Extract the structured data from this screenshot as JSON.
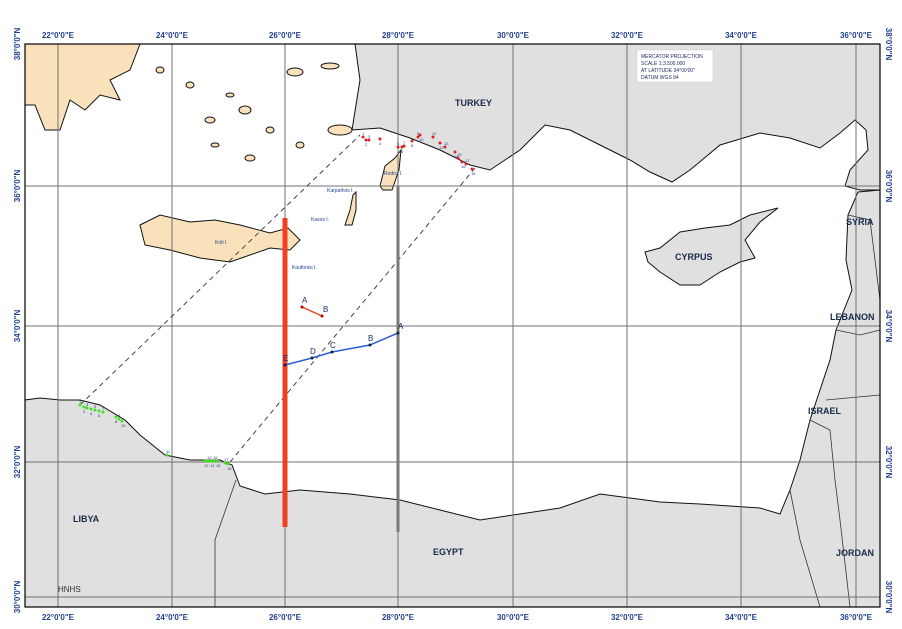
{
  "map": {
    "colors": {
      "land_foreign": "#e0e0e0",
      "land_greece": "#f9e2bb",
      "sea": "#ffffff",
      "grid": "#707070",
      "red_line": "#f04020",
      "grey_line": "#7a7a7a",
      "blue_line": "#2a5fd8",
      "coast_points_turkey": "#e02020",
      "coast_points_libya": "#40e020"
    },
    "legend": [
      "MERCATOR PROJECTION",
      "SCALE 1:3.500.000",
      "AT LATITUDE 34°00'00\"",
      "DATUM WGS 84"
    ],
    "lon_labels": [
      "22°0'0\"E",
      "24°0'0\"E",
      "26°0'0\"E",
      "28°0'0\"E",
      "30°0'0\"E",
      "32°0'0\"E",
      "34°0'0\"E",
      "36°0'0\"E"
    ],
    "lat_labels": [
      "38°0'0\"N",
      "36°0'0\"N",
      "34°0'0\"N",
      "32°0'0\"N",
      "30°0'0\"N"
    ],
    "countries": {
      "turkey": "TURKEY",
      "cyprus": "CYRPUS",
      "syria": "SYRIA",
      "lebanon": "LEBANON",
      "israel": "ISRAEL",
      "jordan": "JORDAN",
      "egypt": "EGYPT",
      "libya": "LIBYA"
    },
    "islands": {
      "karpathos": "Karpathos I.",
      "kasos": "Kasos I.",
      "kriti": "Kriti I.",
      "koufonisi": "Koufonisi I.",
      "rodos": "Rodos I."
    },
    "credit": "HNHS",
    "blue_line_points": [
      "A",
      "B",
      "C",
      "D",
      "E"
    ],
    "red_segment_points": [
      "A",
      "B"
    ],
    "turkey_coast_points": [
      "1",
      "2",
      "3",
      "4",
      "5",
      "6",
      "7",
      "8",
      "9",
      "10",
      "11",
      "12",
      "13",
      "14",
      "15",
      "16",
      "17",
      "18"
    ],
    "libya_coast_points": [
      "1",
      "2",
      "3",
      "4",
      "5",
      "6",
      "7",
      "8",
      "9",
      "10",
      "11",
      "12",
      "13",
      "14",
      "15",
      "16",
      "17",
      "18"
    ]
  }
}
